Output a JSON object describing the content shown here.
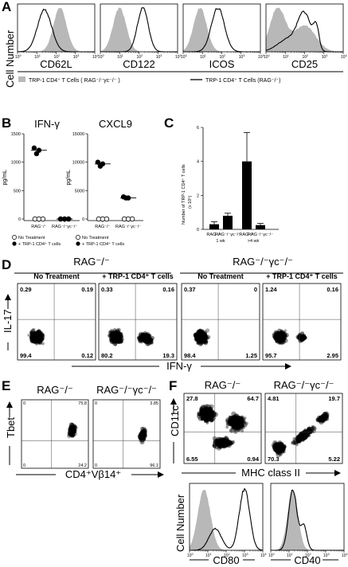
{
  "chart_data": [
    {
      "panel": "A",
      "type": "histogram-overlay",
      "ylabel": "Cell Number",
      "markers": [
        "CD62L",
        "CD122",
        "ICOS",
        "CD25"
      ],
      "x_tick_exponents": [
        0,
        1,
        2,
        3,
        4
      ],
      "legend": [
        "TRP-1 CD4⁺ T Cells ( RAG⁻/⁻γc⁻/⁻ )",
        "TRP-1 CD4⁺ T Cells (RAG⁻/⁻)"
      ]
    },
    {
      "panel": "B",
      "type": "scatter",
      "ylabel": "pg/mL",
      "groups": [
        "RAG⁻/⁻",
        "RAG⁻/⁻γc⁻/⁻"
      ],
      "legend": [
        "No Treatment",
        "+ TRP-1 CD4⁺ T cells"
      ],
      "plots": [
        {
          "title": "IFN-γ",
          "yticks": [
            0,
            500,
            1000,
            1500
          ],
          "ylim": [
            0,
            1500
          ],
          "series": [
            {
              "name": "No Treatment",
              "filled": false,
              "group0": [
                0,
                0,
                0
              ],
              "group1": [
                0,
                0,
                0
              ]
            },
            {
              "name": "+ TRP-1 CD4⁺ T cells",
              "filled": true,
              "group0": [
                1250,
                1210,
                1150
              ],
              "group1": [
                0,
                0,
                0
              ]
            }
          ],
          "medians": [
            1210,
            0
          ]
        },
        {
          "title": "CXCL9",
          "yticks": [
            0,
            5000,
            10000,
            15000
          ],
          "ylim": [
            0,
            15000
          ],
          "series": [
            {
              "name": "No Treatment",
              "filled": false,
              "group0": [
                0,
                0,
                0
              ],
              "group1": [
                0,
                0,
                0
              ]
            },
            {
              "name": "+ TRP-1 CD4⁺ T cells",
              "filled": true,
              "group0": [
                10000,
                9700,
                9300
              ],
              "group1": [
                3900,
                3700,
                3700
              ]
            }
          ],
          "medians": [
            9700,
            3700
          ]
        }
      ]
    },
    {
      "panel": "C",
      "type": "bar",
      "ylabel": "Number of TRP-1 CD4⁺ T cells",
      "ylabel_unit": "(x 10⁵)",
      "categories": [
        "RAG⁻/⁻",
        "RAG⁻/⁻γc⁻/⁻",
        "RAG⁻/⁻",
        "RAG⁻/⁻γc⁻/⁻"
      ],
      "time_groups": [
        "1 wk",
        ">4 wk"
      ],
      "yticks": [
        0,
        2,
        4,
        6
      ],
      "ylim": [
        0,
        6
      ],
      "values": [
        0.3,
        0.8,
        4.0,
        0.25
      ],
      "errors": [
        0.15,
        0.15,
        1.7,
        0.1
      ]
    },
    {
      "panel": "D",
      "type": "density-plot",
      "xlabel": "IFN-γ",
      "ylabel": "IL-17",
      "groups": [
        "RAG⁻/⁻",
        "RAG⁻/⁻γc⁻/⁻"
      ],
      "plots": [
        {
          "title": "No Treatment",
          "quadrants": {
            "ul": "0.29",
            "ur": "0.19",
            "ll": "99.4",
            "lr": "0.12"
          }
        },
        {
          "title": "+ TRP-1 CD4⁺ T cells",
          "quadrants": {
            "ul": "0.33",
            "ur": "0.16",
            "ll": "80.2",
            "lr": "19.3"
          }
        },
        {
          "title": "No Treatment",
          "quadrants": {
            "ul": "0.37",
            "ur": "0",
            "ll": "98.4",
            "lr": "1.25"
          }
        },
        {
          "title": "+ TRP-1 CD4⁺ T cells",
          "quadrants": {
            "ul": "1.24",
            "ur": "0.16",
            "ll": "95.7",
            "lr": "2.95"
          }
        }
      ]
    },
    {
      "panel": "E",
      "type": "density-plot",
      "xlabel": "CD4⁺Vβ14⁺",
      "ylabel": "Tbet",
      "plots": [
        {
          "title": "RAG⁻/⁻",
          "quadrants": {
            "ur": "75.8",
            "lr": "24.2",
            "ul": "0",
            "ll": "0"
          }
        },
        {
          "title": "RAG⁻/⁻γc⁻/⁻",
          "quadrants": {
            "ur": "3.85",
            "lr": "96.1",
            "ul": "0",
            "ll": "0"
          }
        }
      ]
    },
    {
      "panel": "F",
      "type": "density-plot",
      "xlabel": "MHC class II",
      "ylabel": "CD11c",
      "plots": [
        {
          "title": "RAG⁻/⁻",
          "quadrants": {
            "ul": "27.8",
            "ur": "64.7",
            "ll": "6.55",
            "lr": "0.94"
          }
        },
        {
          "title": "RAG⁻/⁻γc⁻/⁻",
          "quadrants": {
            "ul": "4.81",
            "ur": "19.7",
            "ll": "70.3",
            "lr": "5.22"
          }
        }
      ],
      "histograms": {
        "ylabel": "Cell Number",
        "markers": [
          "CD80",
          "CD40"
        ],
        "x_tick_exponents": [
          0,
          1,
          2,
          3,
          4
        ]
      }
    }
  ]
}
